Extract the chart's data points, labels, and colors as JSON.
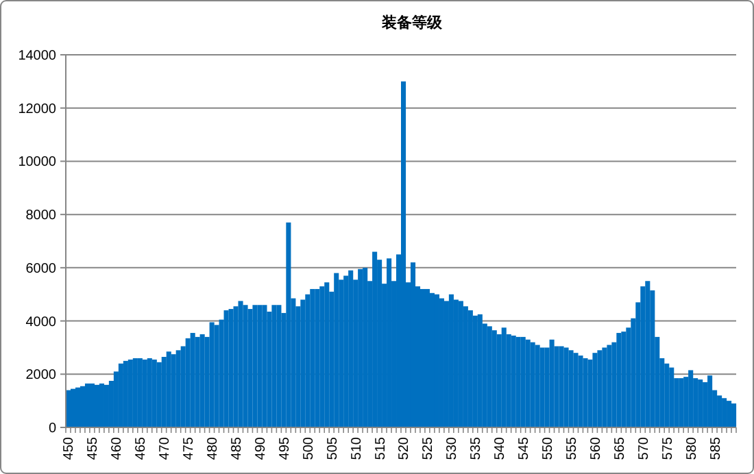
{
  "chart_data": {
    "type": "bar",
    "title": "装备等级",
    "categories": [
      "450",
      null,
      null,
      null,
      null,
      "455",
      null,
      null,
      null,
      null,
      "460",
      null,
      null,
      null,
      null,
      "465",
      null,
      null,
      null,
      null,
      "470",
      null,
      null,
      null,
      null,
      "475",
      null,
      null,
      null,
      null,
      "480",
      null,
      null,
      null,
      null,
      "485",
      null,
      null,
      null,
      null,
      "490",
      null,
      null,
      null,
      null,
      "495",
      null,
      null,
      null,
      null,
      "500",
      null,
      null,
      null,
      null,
      "505",
      null,
      null,
      null,
      null,
      "510",
      null,
      null,
      null,
      null,
      "515",
      null,
      null,
      null,
      null,
      "520",
      null,
      null,
      null,
      null,
      "525",
      null,
      null,
      null,
      null,
      "530",
      null,
      null,
      null,
      null,
      "535",
      null,
      null,
      null,
      null,
      "540",
      null,
      null,
      null,
      null,
      "545",
      null,
      null,
      null,
      null,
      "550",
      null,
      null,
      null,
      null,
      "555",
      null,
      null,
      null,
      null,
      "560",
      null,
      null,
      null,
      null,
      "565",
      null,
      null,
      null,
      null,
      "570",
      null,
      null,
      null,
      null,
      "575",
      null,
      null,
      null,
      null,
      "580",
      null,
      null,
      null,
      null,
      "585",
      null,
      null,
      null,
      null
    ],
    "values": [
      1400,
      1450,
      1500,
      1550,
      1650,
      1650,
      1600,
      1650,
      1600,
      1750,
      2100,
      2400,
      2500,
      2550,
      2600,
      2600,
      2550,
      2600,
      2550,
      2450,
      2650,
      2850,
      2750,
      2900,
      3050,
      3350,
      3550,
      3400,
      3500,
      3400,
      3950,
      3850,
      4050,
      4400,
      4450,
      4550,
      4750,
      4600,
      4450,
      4600,
      4600,
      4600,
      4350,
      4600,
      4600,
      4300,
      7700,
      4850,
      4550,
      4800,
      5000,
      5200,
      5200,
      5300,
      5450,
      5100,
      5800,
      5550,
      5700,
      5900,
      5550,
      5950,
      6000,
      5500,
      6600,
      6300,
      5400,
      6350,
      5500,
      6500,
      13000,
      5450,
      6200,
      5300,
      5200,
      5200,
      5050,
      5000,
      4850,
      4750,
      5000,
      4800,
      4750,
      4550,
      4400,
      4200,
      4250,
      3900,
      3800,
      3650,
      3500,
      3750,
      3500,
      3450,
      3400,
      3400,
      3300,
      3200,
      3100,
      3000,
      3000,
      3300,
      3050,
      3050,
      3000,
      2900,
      2800,
      2700,
      2600,
      2550,
      2800,
      2900,
      3000,
      3100,
      3200,
      3550,
      3600,
      3750,
      4100,
      4700,
      5300,
      5500,
      5150,
      3400,
      2600,
      2400,
      2250,
      1850,
      1850,
      1900,
      2150,
      1850,
      1800,
      1700,
      1950,
      1400,
      1200,
      1100,
      1000,
      900
    ],
    "color": "#0070c0",
    "ylim": [
      0,
      14000
    ],
    "yticks": [
      0,
      2000,
      4000,
      6000,
      8000,
      10000,
      12000,
      14000
    ],
    "grid": "y"
  }
}
